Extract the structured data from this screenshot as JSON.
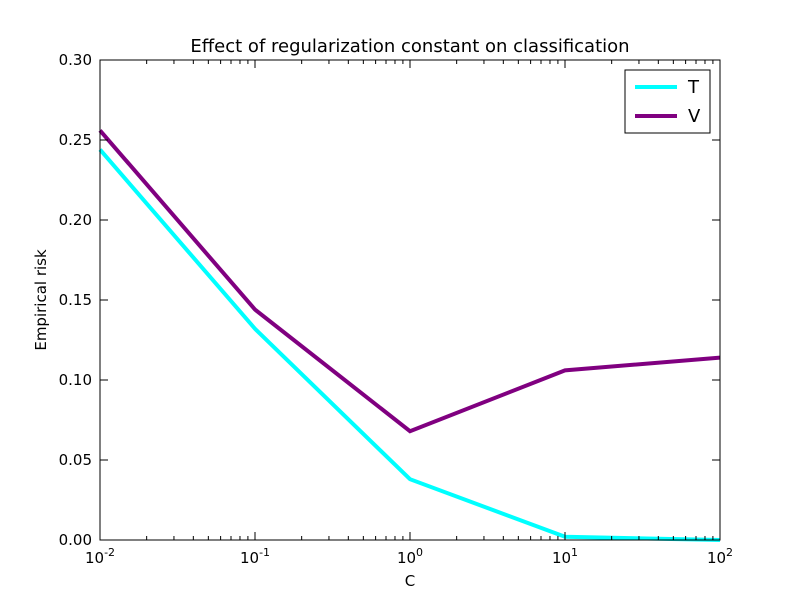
{
  "chart_data": {
    "type": "line",
    "title": "Effect of regularization constant on classification",
    "xlabel": "C",
    "ylabel": "Empirical risk",
    "xscale": "log",
    "xlim": [
      0.01,
      100
    ],
    "ylim": [
      0.0,
      0.3
    ],
    "x": [
      0.01,
      0.1,
      1,
      10,
      100
    ],
    "xticks": [
      {
        "value": 0.01,
        "base": "10",
        "exp": "-2"
      },
      {
        "value": 0.1,
        "base": "10",
        "exp": "-1"
      },
      {
        "value": 1,
        "base": "10",
        "exp": "0"
      },
      {
        "value": 10,
        "base": "10",
        "exp": "1"
      },
      {
        "value": 100,
        "base": "10",
        "exp": "2"
      }
    ],
    "yticks": [
      "0.00",
      "0.05",
      "0.10",
      "0.15",
      "0.20",
      "0.25",
      "0.30"
    ],
    "series": [
      {
        "name": "T",
        "color": "#00ffff",
        "values": [
          0.244,
          0.132,
          0.038,
          0.002,
          0.0
        ]
      },
      {
        "name": "V",
        "color": "#800080",
        "values": [
          0.256,
          0.144,
          0.068,
          0.106,
          0.114
        ]
      }
    ],
    "legend_position": "top-right",
    "grid": false
  }
}
